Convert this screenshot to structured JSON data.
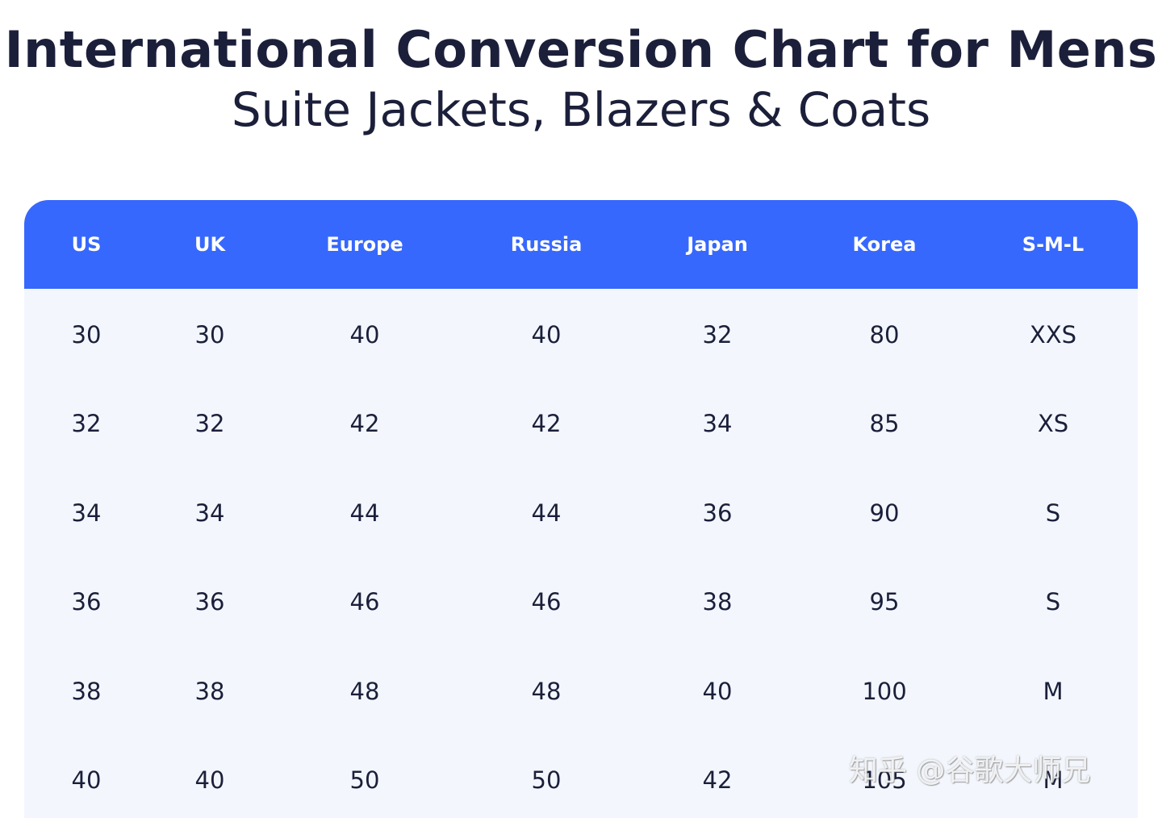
{
  "title": "International Conversion Chart for Mens",
  "subtitle": "Suite Jackets, Blazers & Coats",
  "table": {
    "headers": [
      "US",
      "UK",
      "Europe",
      "Russia",
      "Japan",
      "Korea",
      "S-M-L"
    ],
    "rows": [
      [
        "30",
        "30",
        "40",
        "40",
        "32",
        "80",
        "XXS"
      ],
      [
        "32",
        "32",
        "42",
        "42",
        "34",
        "85",
        "XS"
      ],
      [
        "34",
        "34",
        "44",
        "44",
        "36",
        "90",
        "S"
      ],
      [
        "36",
        "36",
        "46",
        "46",
        "38",
        "95",
        "S"
      ],
      [
        "38",
        "38",
        "48",
        "48",
        "40",
        "100",
        "M"
      ],
      [
        "40",
        "40",
        "50",
        "50",
        "42",
        "105",
        "M"
      ]
    ]
  },
  "watermark": "知乎 @谷歌大师兄",
  "colors": {
    "header_bg": "#3768fd",
    "body_bg": "#f3f7fd",
    "text": "#1b1f3a"
  }
}
